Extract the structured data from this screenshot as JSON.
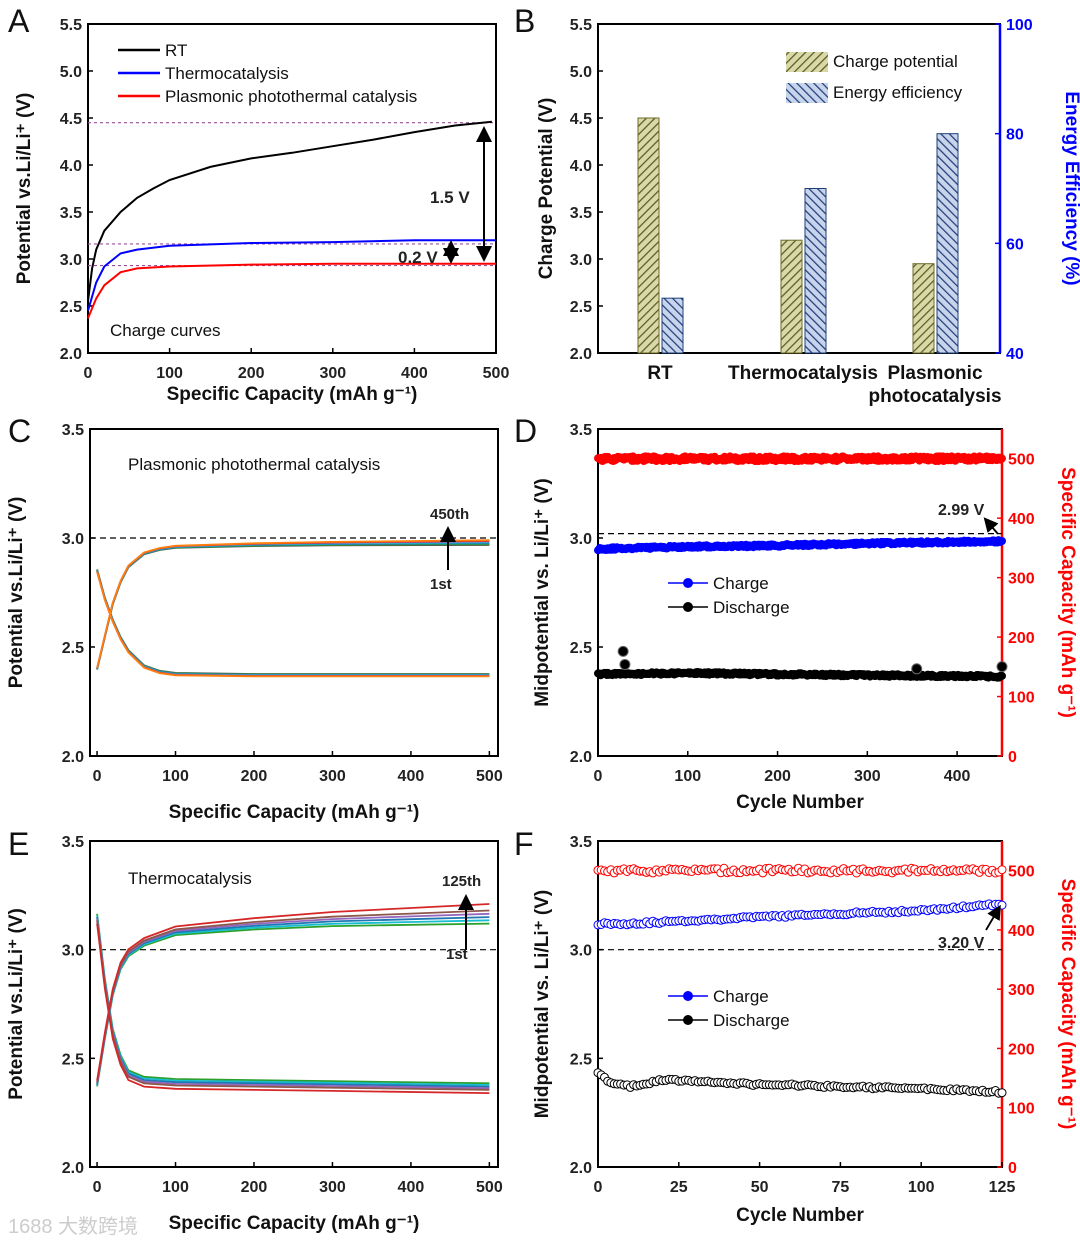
{
  "figure": {
    "panel_letters": [
      "A",
      "B",
      "C",
      "D",
      "E",
      "F"
    ],
    "watermark": "1688 大数跨境"
  },
  "chart_data": [
    {
      "panel": "A",
      "type": "line",
      "xlabel": "Specific Capacity (mAh g⁻¹)",
      "ylabel": "Potential vs.Li/Li⁺ (V)",
      "xlim": [
        0,
        500
      ],
      "ylim": [
        2.0,
        5.5
      ],
      "xticks": [
        "0",
        "100",
        "200",
        "300",
        "400",
        "500"
      ],
      "yticks": [
        "2.0",
        "2.5",
        "3.0",
        "3.5",
        "4.0",
        "4.5",
        "5.0",
        "5.5"
      ],
      "inset_label": "Charge curves",
      "legend": [
        {
          "label": "RT",
          "color": "#000000"
        },
        {
          "label": "Thermocatalysis",
          "color": "#0000ff"
        },
        {
          "label": "Plasmonic photothermal catalysis",
          "color": "#ff0000"
        }
      ],
      "series": [
        {
          "name": "RT",
          "color": "#000000",
          "points": [
            [
              0,
              2.55
            ],
            [
              5,
              2.9
            ],
            [
              10,
              3.1
            ],
            [
              20,
              3.3
            ],
            [
              40,
              3.5
            ],
            [
              60,
              3.65
            ],
            [
              80,
              3.75
            ],
            [
              100,
              3.84
            ],
            [
              150,
              3.98
            ],
            [
              200,
              4.07
            ],
            [
              250,
              4.13
            ],
            [
              300,
              4.2
            ],
            [
              350,
              4.27
            ],
            [
              400,
              4.35
            ],
            [
              450,
              4.42
            ],
            [
              495,
              4.46
            ]
          ]
        },
        {
          "name": "Thermocatalysis",
          "color": "#0000ff",
          "points": [
            [
              0,
              2.45
            ],
            [
              10,
              2.75
            ],
            [
              20,
              2.92
            ],
            [
              40,
              3.06
            ],
            [
              60,
              3.1
            ],
            [
              100,
              3.14
            ],
            [
              200,
              3.17
            ],
            [
              300,
              3.18
            ],
            [
              400,
              3.2
            ],
            [
              500,
              3.2
            ]
          ]
        },
        {
          "name": "Plasmonic photothermal catalysis",
          "color": "#ff0000",
          "points": [
            [
              0,
              2.37
            ],
            [
              10,
              2.58
            ],
            [
              20,
              2.72
            ],
            [
              40,
              2.86
            ],
            [
              60,
              2.9
            ],
            [
              100,
              2.92
            ],
            [
              200,
              2.94
            ],
            [
              300,
              2.95
            ],
            [
              500,
              2.95
            ]
          ]
        }
      ],
      "hlines": [
        {
          "y": 4.45,
          "color": "#9b4f9b",
          "style": "dot"
        },
        {
          "y": 3.16,
          "color": "#9b4f9b",
          "style": "dot"
        },
        {
          "y": 2.93,
          "color": "#9b4f9b",
          "style": "dot"
        }
      ],
      "annotations": [
        "1.5 V",
        "0.2 V"
      ]
    },
    {
      "panel": "B",
      "type": "bar",
      "categories": [
        "RT",
        "Thermocatalysis",
        "Plasmonic photocatalysis"
      ],
      "category_lines": [
        [
          "RT"
        ],
        [
          "Thermocatalysis"
        ],
        [
          "Plasmonic",
          "photocatalysis"
        ]
      ],
      "ylabel": "Charge Potential (V)",
      "y2label": "Energy Efficiency (%)",
      "ylim": [
        2.0,
        5.5
      ],
      "y2lim": [
        40,
        100
      ],
      "yticks": [
        "2.0",
        "2.5",
        "3.0",
        "3.5",
        "4.0",
        "4.5",
        "5.0",
        "5.5"
      ],
      "y2ticks": [
        "40",
        "60",
        "80",
        "100"
      ],
      "series": [
        {
          "name": "Charge potential",
          "axis": "left",
          "color": "#8c8c3c",
          "values": [
            4.5,
            3.2,
            2.95
          ]
        },
        {
          "name": "Energy efficiency",
          "axis": "right",
          "color": "#2f5597",
          "values": [
            50,
            70,
            80
          ]
        }
      ],
      "legend": [
        "Charge potential",
        "Energy efficiency"
      ],
      "y2color": "#0000ff"
    },
    {
      "panel": "C",
      "type": "line",
      "xlabel": "Specific Capacity (mAh g⁻¹)",
      "ylabel": "Potential vs.Li/Li⁺ (V)",
      "xlim": [
        -9,
        511
      ],
      "ylim": [
        2.0,
        3.5
      ],
      "xticks": [
        "0",
        "100",
        "200",
        "300",
        "400",
        "500"
      ],
      "yticks": [
        "2.0",
        "2.5",
        "3.0",
        "3.5"
      ],
      "inset_label": "Plasmonic photothermal catalysis",
      "charge_curve": [
        [
          0,
          2.4
        ],
        [
          10,
          2.55
        ],
        [
          20,
          2.7
        ],
        [
          30,
          2.8
        ],
        [
          40,
          2.87
        ],
        [
          60,
          2.93
        ],
        [
          80,
          2.95
        ],
        [
          100,
          2.96
        ],
        [
          200,
          2.97
        ],
        [
          300,
          2.975
        ],
        [
          500,
          2.98
        ]
      ],
      "discharge_curve": [
        [
          0,
          2.85
        ],
        [
          10,
          2.72
        ],
        [
          20,
          2.62
        ],
        [
          30,
          2.54
        ],
        [
          40,
          2.48
        ],
        [
          60,
          2.41
        ],
        [
          80,
          2.385
        ],
        [
          100,
          2.375
        ],
        [
          200,
          2.37
        ],
        [
          500,
          2.37
        ]
      ],
      "cycles": [
        {
          "color": "#555555",
          "dv": -0.012
        },
        {
          "color": "#2ca02c",
          "dv": -0.008
        },
        {
          "color": "#1f77b4",
          "dv": -0.004
        },
        {
          "color": "#17becf",
          "dv": 0.0
        },
        {
          "color": "#9467bd",
          "dv": 0.004
        },
        {
          "color": "#d62728",
          "dv": 0.007
        },
        {
          "color": "#ff7f0e",
          "dv": 0.01
        }
      ],
      "hlines": [
        {
          "y": 3.0,
          "color": "#000000",
          "style": "dash"
        }
      ],
      "annotations": [
        "450th",
        "1st"
      ]
    },
    {
      "panel": "D",
      "type": "scatter",
      "xlabel": "Cycle Number",
      "ylabel": "Midpotential vs. Li/Li⁺ (V)",
      "y2label": "Specific Capacity (mAh g⁻¹)",
      "xlim": [
        0,
        450
      ],
      "ylim": [
        2.0,
        3.5
      ],
      "y2lim": [
        0,
        550
      ],
      "xticks": [
        "0",
        "100",
        "200",
        "300",
        "400"
      ],
      "yticks": [
        "2.0",
        "2.5",
        "3.0",
        "3.5"
      ],
      "y2ticks": [
        "0",
        "100",
        "200",
        "300",
        "400",
        "500"
      ],
      "n_cycles": 450,
      "marker": "filled",
      "series": [
        {
          "name": "Charge",
          "axis": "left",
          "color": "#0000ff",
          "points": [
            [
              0,
              2.95
            ],
            [
              100,
              2.96
            ],
            [
              200,
              2.965
            ],
            [
              300,
              2.975
            ],
            [
              450,
              2.985
            ]
          ]
        },
        {
          "name": "Discharge",
          "axis": "left",
          "color": "#000000",
          "points": [
            [
              0,
              2.375
            ],
            [
              100,
              2.38
            ],
            [
              200,
              2.375
            ],
            [
              300,
              2.37
            ],
            [
              450,
              2.365
            ]
          ],
          "outliers": [
            [
              28,
              2.48
            ],
            [
              30,
              2.42
            ],
            [
              355,
              2.4
            ],
            [
              450,
              2.41
            ]
          ]
        },
        {
          "name": "Specific Capacity",
          "axis": "right",
          "color": "#ff0000",
          "points": [
            [
              0,
              500
            ],
            [
              450,
              500
            ]
          ]
        }
      ],
      "legend": [
        {
          "label": "Charge",
          "color": "#0000ff"
        },
        {
          "label": "Discharge",
          "color": "#000000"
        }
      ],
      "hlines": [
        {
          "y": 3.02,
          "color": "#000000",
          "style": "dash"
        }
      ],
      "annotations": [
        "2.99 V"
      ],
      "y2color": "#ff0000"
    },
    {
      "panel": "E",
      "type": "line",
      "xlabel": "Specific Capacity (mAh g⁻¹)",
      "ylabel": "Potential vs.Li/Li⁺ (V)",
      "xlim": [
        -9,
        511
      ],
      "ylim": [
        2.0,
        3.5
      ],
      "xticks": [
        "0",
        "100",
        "200",
        "300",
        "400",
        "500"
      ],
      "yticks": [
        "2.0",
        "2.5",
        "3.0",
        "3.5"
      ],
      "inset_label": "Thermocatalysis",
      "charge_curve": [
        [
          0,
          2.38
        ],
        [
          10,
          2.6
        ],
        [
          20,
          2.8
        ],
        [
          30,
          2.92
        ],
        [
          40,
          2.98
        ],
        [
          60,
          3.03
        ],
        [
          100,
          3.08
        ],
        [
          200,
          3.11
        ],
        [
          300,
          3.13
        ],
        [
          400,
          3.14
        ],
        [
          500,
          3.15
        ]
      ],
      "discharge_curve": [
        [
          0,
          3.15
        ],
        [
          10,
          2.85
        ],
        [
          20,
          2.62
        ],
        [
          30,
          2.5
        ],
        [
          40,
          2.43
        ],
        [
          60,
          2.4
        ],
        [
          100,
          2.39
        ],
        [
          300,
          2.38
        ],
        [
          500,
          2.37
        ]
      ],
      "cycles": [
        {
          "color": "#2ca02c",
          "dv": -0.03
        },
        {
          "color": "#17becf",
          "dv": -0.015
        },
        {
          "color": "#1f77b4",
          "dv": 0.0
        },
        {
          "color": "#9467bd",
          "dv": 0.015
        },
        {
          "color": "#8c564b",
          "dv": 0.03
        },
        {
          "color": "#d62728",
          "dv": 0.06
        }
      ],
      "hlines": [
        {
          "y": 3.0,
          "color": "#000000",
          "style": "dash"
        }
      ],
      "annotations": [
        "125th",
        "1st"
      ]
    },
    {
      "panel": "F",
      "type": "scatter",
      "xlabel": "Cycle Number",
      "ylabel": "Midpotential vs. Li/Li⁺ (V)",
      "y2label": "Specific Capacity (mAh g⁻¹)",
      "xlim": [
        0,
        125
      ],
      "ylim": [
        2.0,
        3.5
      ],
      "y2lim": [
        0,
        550
      ],
      "xticks": [
        "0",
        "25",
        "50",
        "75",
        "100",
        "125"
      ],
      "yticks": [
        "2.0",
        "2.5",
        "3.0",
        "3.5"
      ],
      "y2ticks": [
        "0",
        "100",
        "200",
        "300",
        "400",
        "500"
      ],
      "n_cycles": 125,
      "marker": "open",
      "series": [
        {
          "name": "Charge",
          "axis": "left",
          "color": "#0000ff",
          "points": [
            [
              0,
              3.12
            ],
            [
              10,
              3.12
            ],
            [
              50,
              3.15
            ],
            [
              100,
              3.18
            ],
            [
              125,
              3.21
            ]
          ]
        },
        {
          "name": "Discharge",
          "axis": "left",
          "color": "#000000",
          "points": [
            [
              0,
              2.43
            ],
            [
              5,
              2.38
            ],
            [
              10,
              2.37
            ],
            [
              20,
              2.4
            ],
            [
              30,
              2.395
            ],
            [
              50,
              2.38
            ],
            [
              100,
              2.36
            ],
            [
              125,
              2.345
            ]
          ]
        },
        {
          "name": "Specific Capacity",
          "axis": "right",
          "color": "#ff0000",
          "points": [
            [
              0,
              500
            ],
            [
              125,
              500
            ]
          ]
        }
      ],
      "legend": [
        {
          "label": "Charge",
          "color": "#0000ff"
        },
        {
          "label": "Discharge",
          "color": "#000000"
        }
      ],
      "hlines": [
        {
          "y": 3.0,
          "color": "#000000",
          "style": "dash"
        }
      ],
      "annotations": [
        "3.20 V"
      ],
      "y2color": "#ff0000"
    }
  ]
}
